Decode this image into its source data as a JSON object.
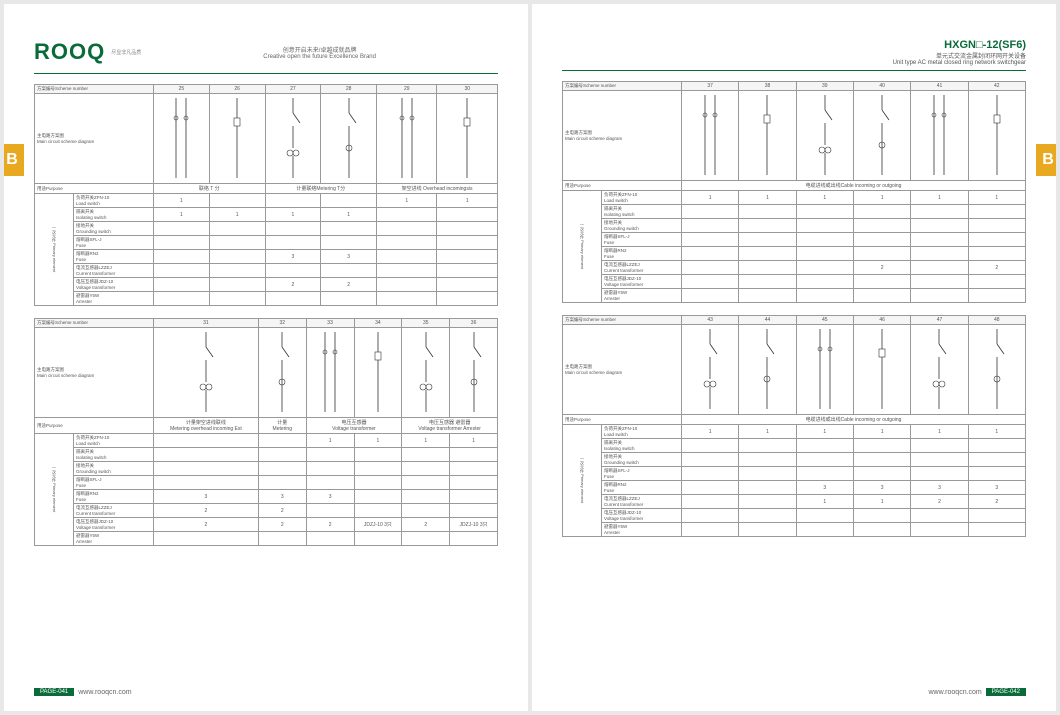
{
  "brand": {
    "logo": "ROOQ",
    "logo_sub": "尽显非凡品质",
    "tagline_cn": "创意开启未来/卓越成就品牌",
    "tagline_en": "Creative open the future Excellence Brand"
  },
  "product": {
    "model": "HXGN□-12(SF6)",
    "name_cn": "单元式交流金属封闭环网开关设备",
    "name_en": "Unit type AC metal closed ring network switchgear"
  },
  "colors": {
    "brand": "#0a6b3a",
    "tab": "#e8a820"
  },
  "labels": {
    "scheme": "方案编号Scheme number",
    "diagram": "主电路方案图\nMain circuit scheme diagram",
    "purpose": "用途Purpose",
    "primary": "一次元件\nPrimary element"
  },
  "rows": [
    {
      "cn": "负荷开关ZFN-10",
      "en": "Load switch"
    },
    {
      "cn": "隔离开关",
      "en": "Isolating switch"
    },
    {
      "cn": "接地开关",
      "en": "Grounding switch"
    },
    {
      "cn": "熔断器SFL-J",
      "en": "Fuse"
    },
    {
      "cn": "熔断器RN2",
      "en": "Fuse"
    },
    {
      "cn": "电流互感器LZZEJ",
      "en": "Current transformer"
    },
    {
      "cn": "电压互感器JDZ-10",
      "en": "Voltage transformer"
    },
    {
      "cn": "避雷器Y5W",
      "en": "Arrester"
    }
  ],
  "tables": [
    {
      "page": "L",
      "cols": [
        "25",
        "26",
        "27",
        "28",
        "29",
        "30"
      ],
      "purpose": [
        "联络 T 分",
        "",
        "计量联络Metering T分",
        "",
        "架空进线 Overhead incomingsis",
        ""
      ],
      "data": [
        [
          "1",
          "",
          "",
          "",
          "1",
          "1"
        ],
        [
          "1",
          "1",
          "1",
          "1",
          "",
          ""
        ],
        [
          "",
          "",
          "",
          "",
          "",
          ""
        ],
        [
          "",
          "",
          "",
          "",
          "",
          ""
        ],
        [
          "",
          "",
          "3",
          "3",
          "",
          ""
        ],
        [
          "",
          "",
          "",
          "",
          "",
          ""
        ],
        [
          "",
          "",
          "2",
          "2",
          "",
          ""
        ],
        [
          "",
          "",
          "",
          "",
          "",
          ""
        ]
      ]
    },
    {
      "page": "L",
      "cols": [
        "31",
        "32",
        "33",
        "34",
        "35",
        "36"
      ],
      "purpose": [
        "计量架空进线联线\nMetering overhead incoming Est",
        "计量\nMetering",
        "电压互感器\nVoltage transformer",
        "",
        "电压互感器 避雷器\nVoltage transformer Arrester",
        ""
      ],
      "data": [
        [
          "",
          "",
          "1",
          "1",
          "1",
          "1"
        ],
        [
          "",
          "",
          "",
          "",
          "",
          ""
        ],
        [
          "",
          "",
          "",
          "",
          "",
          ""
        ],
        [
          "",
          "",
          "",
          "",
          "",
          ""
        ],
        [
          "3",
          "3",
          "3",
          "",
          "",
          ""
        ],
        [
          "2",
          "2",
          "",
          "",
          "",
          ""
        ],
        [
          "2",
          "2",
          "2",
          "JDZJ-10 3只",
          "2",
          "JDZJ-10 3只"
        ],
        [
          "",
          "",
          "",
          "",
          "",
          ""
        ]
      ]
    },
    {
      "page": "R",
      "cols": [
        "37",
        "38",
        "39",
        "40",
        "41",
        "42"
      ],
      "purpose": [
        "电缆进线或出线Cable incoming or outgoing",
        "",
        "",
        "",
        "",
        ""
      ],
      "data": [
        [
          "1",
          "1",
          "1",
          "1",
          "1",
          "1"
        ],
        [
          "",
          "",
          "",
          "",
          "",
          ""
        ],
        [
          "",
          "",
          "",
          "",
          "",
          ""
        ],
        [
          "",
          "",
          "",
          "",
          "",
          ""
        ],
        [
          "",
          "",
          "",
          "",
          "",
          ""
        ],
        [
          "",
          "",
          "",
          "2",
          "",
          "2"
        ],
        [
          "",
          "",
          "",
          "",
          "",
          ""
        ],
        [
          "",
          "",
          "",
          "",
          "",
          ""
        ]
      ]
    },
    {
      "page": "R",
      "cols": [
        "43",
        "44",
        "45",
        "46",
        "47",
        "48"
      ],
      "purpose": [
        "电缆进线或出线Cable incoming or outgoing",
        "",
        "",
        "",
        "",
        ""
      ],
      "data": [
        [
          "1",
          "1",
          "1",
          "1",
          "1",
          "1"
        ],
        [
          "",
          "",
          "",
          "",
          "",
          ""
        ],
        [
          "",
          "",
          "",
          "",
          "",
          ""
        ],
        [
          "",
          "",
          "",
          "",
          "",
          ""
        ],
        [
          "",
          "",
          "3",
          "3",
          "3",
          "3"
        ],
        [
          "",
          "",
          "1",
          "1",
          "2",
          "2"
        ],
        [
          "",
          "",
          "",
          "",
          "",
          ""
        ],
        [
          "",
          "",
          "",
          "",
          "",
          ""
        ]
      ]
    }
  ],
  "footer": {
    "url": "www.rooqcn.com",
    "pl": "PAGE-041",
    "pr": "PAGE-042"
  },
  "tab": "B"
}
